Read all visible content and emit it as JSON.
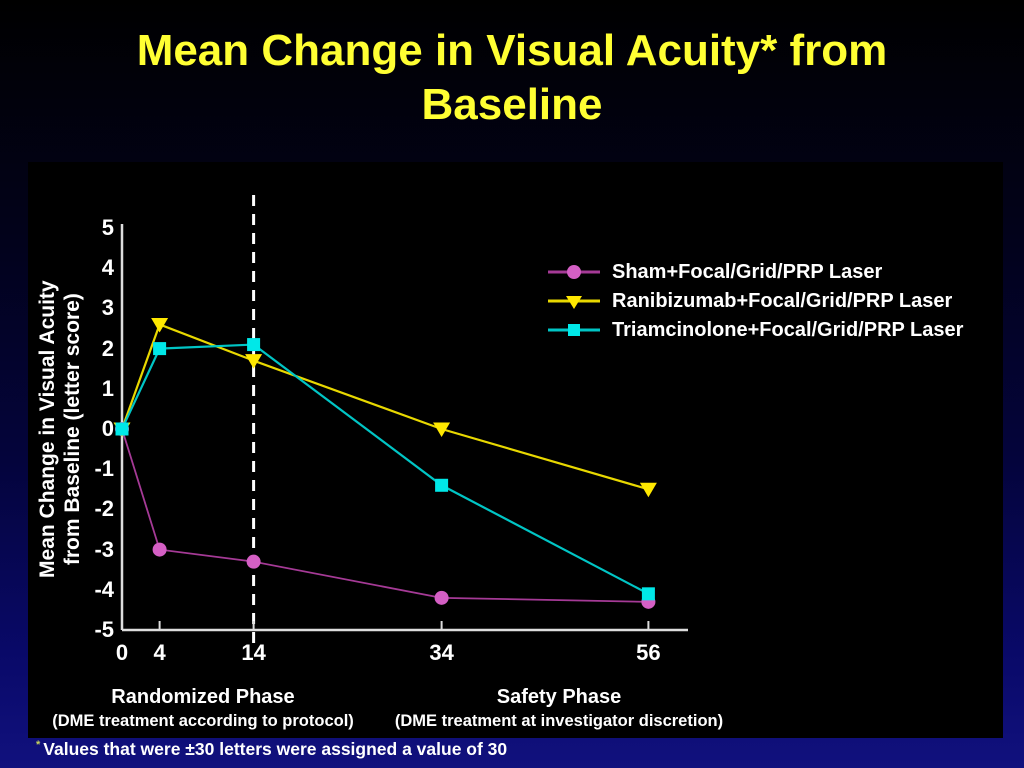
{
  "slide": {
    "title_line1": "Mean Change in Visual Acuity* from",
    "title_line2": "Baseline",
    "footnote_marker": "*",
    "footnote_text": "Values that were ±30 letters were assigned a value of 30",
    "colors": {
      "title": "#FFFF33",
      "background_top": "#000000",
      "background_bottom": "#11117e",
      "panel": "#000000",
      "axis": "#dddddd",
      "divider": "#ffffff"
    }
  },
  "chart_data": {
    "type": "line",
    "title": "",
    "xlabel": "",
    "ylabel_line1": "Mean Change in Visual Acuity",
    "ylabel_line2": "from Baseline (letter score)",
    "x": [
      0,
      4,
      14,
      34,
      56
    ],
    "x_tick_labels": [
      "0",
      "4",
      "14",
      "34",
      "56"
    ],
    "ylim": [
      -5,
      5
    ],
    "y_ticks": [
      5,
      4,
      3,
      2,
      1,
      0,
      -1,
      -2,
      -3,
      -4,
      -5
    ],
    "grid": false,
    "legend_position": "upper right",
    "series": [
      {
        "name": "Sham+Focal/Grid/PRP Laser",
        "marker": "circle",
        "color": "#d45fc4",
        "line_color": "#a53a96",
        "line_width": 1.8,
        "values": [
          0,
          -3.0,
          -3.3,
          -4.2,
          -4.3
        ]
      },
      {
        "name": "Ranibizumab+Focal/Grid/PRP Laser",
        "marker": "triangle-down",
        "color": "#ffe800",
        "line_color": "#e8d800",
        "line_width": 2.2,
        "values": [
          0,
          2.6,
          1.7,
          0,
          -1.5
        ]
      },
      {
        "name": "Triamcinolone+Focal/Grid/PRP Laser",
        "marker": "square",
        "color": "#00e8e8",
        "line_color": "#00c5c5",
        "line_width": 2.2,
        "values": [
          0,
          2.0,
          2.1,
          -1.4,
          -4.1
        ]
      }
    ],
    "annotations": {
      "divider_week": 14,
      "phases": [
        {
          "label": "Randomized Phase",
          "sublabel": "(DME treatment according to protocol)"
        },
        {
          "label": "Safety Phase",
          "sublabel": "(DME treatment at investigator discretion)"
        }
      ]
    }
  }
}
